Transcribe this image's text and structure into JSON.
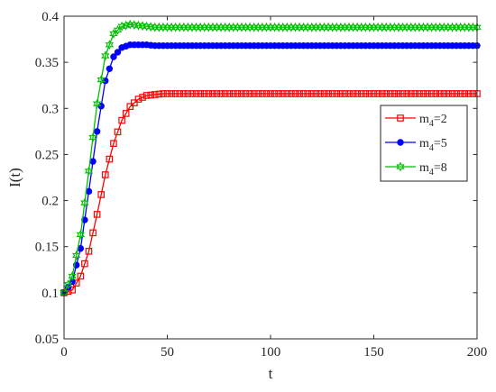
{
  "chart_data": {
    "type": "line",
    "xlabel": "t",
    "ylabel": "I(t)",
    "xlim": [
      0,
      200
    ],
    "ylim": [
      0.05,
      0.4
    ],
    "xticks": [
      0,
      50,
      100,
      150,
      200
    ],
    "yticks": [
      0.05,
      0.1,
      0.15,
      0.2,
      0.25,
      0.3,
      0.35,
      0.4
    ],
    "xtick_labels": [
      "0",
      "50",
      "100",
      "150",
      "200"
    ],
    "ytick_labels": [
      "0.05",
      "0.1",
      "0.15",
      "0.2",
      "0.25",
      "0.3",
      "0.35",
      "0.4"
    ],
    "grid": false,
    "legend_position": "right, upper-middle",
    "x": [
      0,
      4,
      8,
      12,
      16,
      20,
      24,
      28,
      32,
      36,
      40,
      44,
      48,
      52,
      56,
      60,
      80,
      100,
      120,
      140,
      160,
      180,
      200
    ],
    "series": [
      {
        "name_main": "m",
        "name_sub": "4",
        "name_suffix": "=2",
        "color": "#ff0000",
        "marker": "square",
        "values": [
          0.1,
          0.103,
          0.118,
          0.145,
          0.185,
          0.228,
          0.262,
          0.287,
          0.302,
          0.31,
          0.314,
          0.315,
          0.316,
          0.316,
          0.316,
          0.316,
          0.316,
          0.316,
          0.316,
          0.316,
          0.316,
          0.316,
          0.316
        ]
      },
      {
        "name_main": "m",
        "name_sub": "4",
        "name_suffix": "=5",
        "color": "#0000ff",
        "marker": "circle",
        "values": [
          0.1,
          0.112,
          0.148,
          0.21,
          0.275,
          0.33,
          0.356,
          0.366,
          0.369,
          0.369,
          0.369,
          0.368,
          0.368,
          0.368,
          0.368,
          0.368,
          0.368,
          0.368,
          0.368,
          0.368,
          0.368,
          0.368,
          0.368
        ]
      },
      {
        "name_main": "m",
        "name_sub": "4",
        "name_suffix": "=8",
        "color": "#00c000",
        "marker": "hexagram",
        "values": [
          0.1,
          0.118,
          0.163,
          0.232,
          0.305,
          0.357,
          0.381,
          0.389,
          0.391,
          0.39,
          0.389,
          0.388,
          0.388,
          0.388,
          0.388,
          0.388,
          0.388,
          0.388,
          0.388,
          0.388,
          0.388,
          0.388,
          0.388
        ]
      }
    ]
  }
}
